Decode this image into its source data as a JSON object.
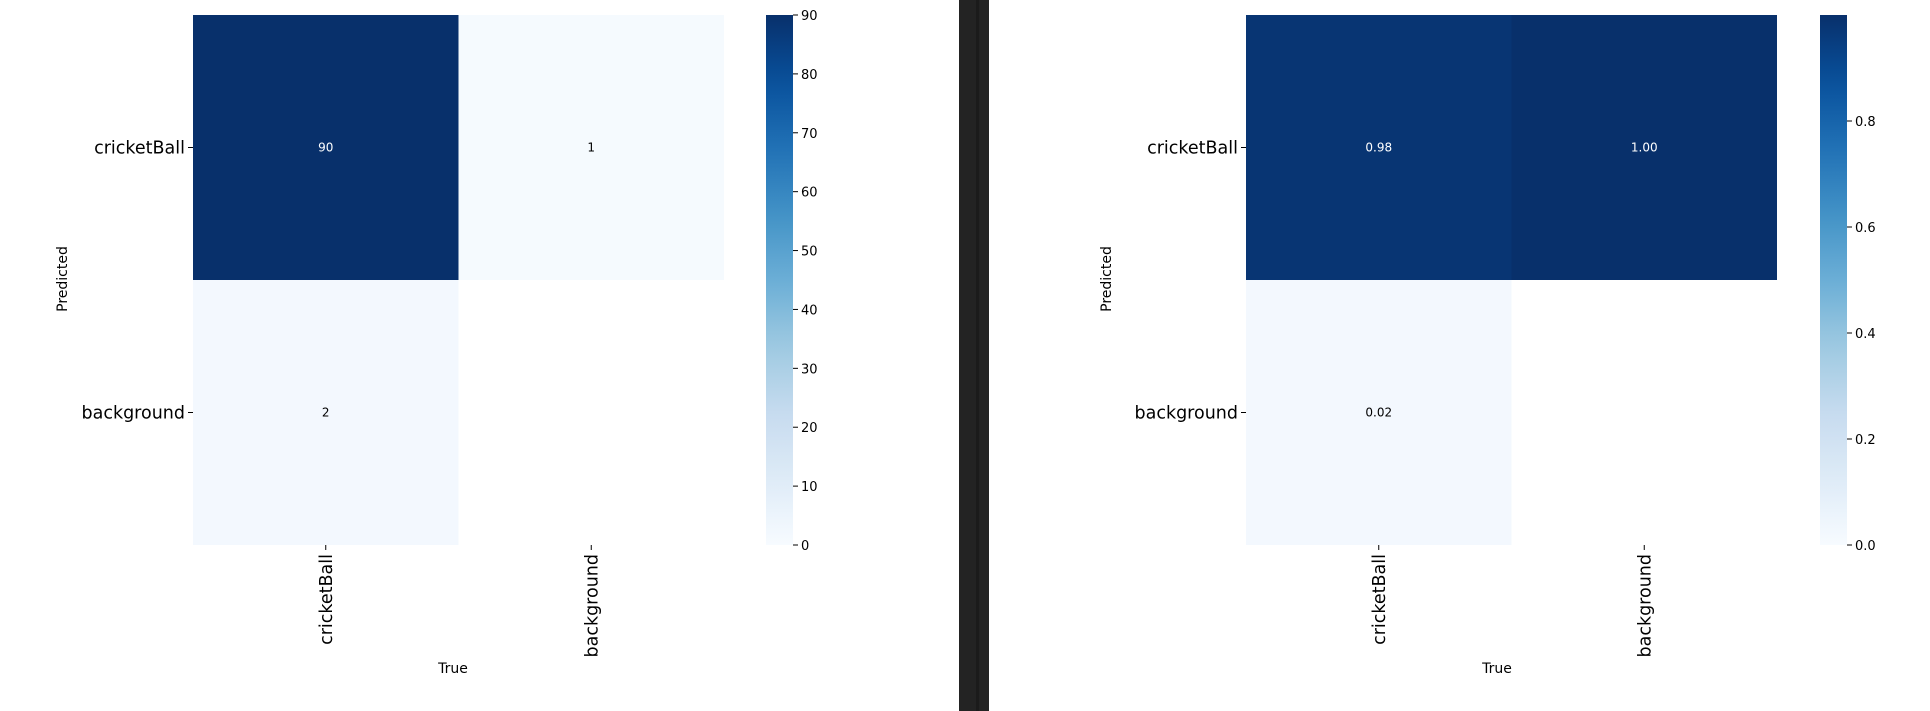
{
  "chart_data": [
    {
      "type": "heatmap",
      "xlabel": "True",
      "ylabel": "Predicted",
      "x_categories": [
        "cricketBall",
        "background"
      ],
      "y_categories": [
        "cricketBall",
        "background"
      ],
      "values": [
        [
          90,
          1
        ],
        [
          2,
          null
        ]
      ],
      "cell_labels": [
        [
          "90",
          "1"
        ],
        [
          "2",
          ""
        ]
      ],
      "colorbar": {
        "min": 0,
        "max": 90,
        "ticks": [
          0,
          10,
          20,
          30,
          40,
          50,
          60,
          70,
          80,
          90
        ],
        "tick_labels": [
          "0",
          "10",
          "20",
          "30",
          "40",
          "50",
          "60",
          "70",
          "80",
          "90"
        ]
      },
      "colormap": "Blues"
    },
    {
      "type": "heatmap",
      "xlabel": "True",
      "ylabel": "Predicted",
      "x_categories": [
        "cricketBall",
        "background"
      ],
      "y_categories": [
        "cricketBall",
        "background"
      ],
      "values": [
        [
          0.98,
          1.0
        ],
        [
          0.02,
          null
        ]
      ],
      "cell_labels": [
        [
          "0.98",
          "1.00"
        ],
        [
          "0.02",
          ""
        ]
      ],
      "colorbar": {
        "min": 0,
        "max": 1.0,
        "ticks": [
          0.0,
          0.2,
          0.4,
          0.6,
          0.8
        ],
        "tick_labels": [
          "0.0",
          "0.2",
          "0.4",
          "0.6",
          "0.8"
        ]
      },
      "colormap": "Blues"
    }
  ]
}
